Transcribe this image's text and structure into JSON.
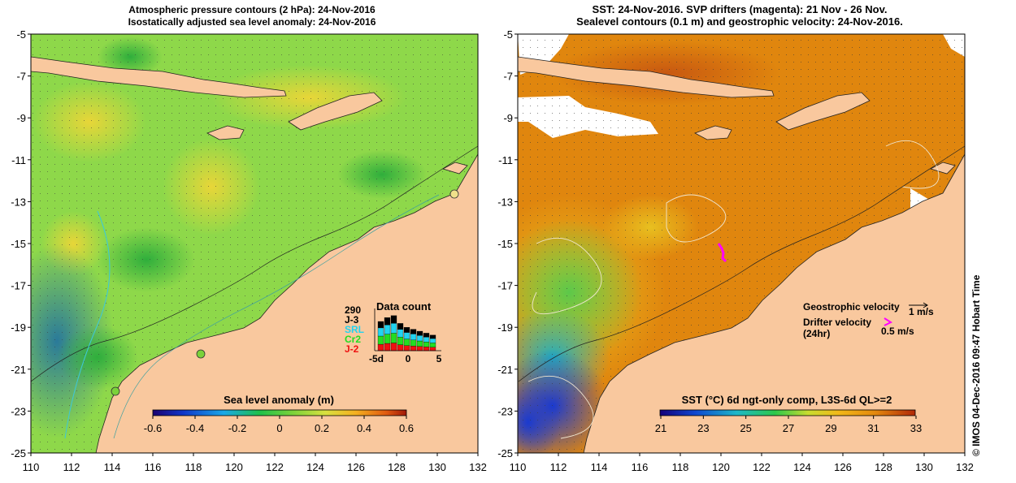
{
  "left_panel": {
    "title_line1": "Atmospheric pressure contours (2 hPa): 24-Nov-2016",
    "title_line2": "Isostatically adjusted sea level anomaly: 24-Nov-2016",
    "y_ticks": [
      "-5",
      "-7",
      "-9",
      "-11",
      "-13",
      "-15",
      "-17",
      "-19",
      "-21",
      "-23",
      "-25"
    ],
    "x_ticks": [
      "110",
      "112",
      "114",
      "116",
      "118",
      "120",
      "122",
      "124",
      "126",
      "128",
      "130",
      "132"
    ],
    "colorbar": {
      "label": "Sea level anomaly (m)",
      "ticks": [
        "-0.6",
        "-0.4",
        "-0.2",
        "0",
        "0.2",
        "0.4",
        "0.6"
      ]
    },
    "data_count": {
      "title": "Data count",
      "max_label": "290",
      "missions": [
        {
          "label": "J-3",
          "color": "#000000"
        },
        {
          "label": "SRL",
          "color": "#22d3f0"
        },
        {
          "label": "Cr2",
          "color": "#22dd22"
        },
        {
          "label": "J-2",
          "color": "#ee1111"
        }
      ],
      "x_ticks": [
        "-5d",
        "0",
        "5"
      ]
    }
  },
  "right_panel": {
    "title_line1": "SST: 24-Nov-2016. SVP drifters (magenta): 21 Nov - 26 Nov.",
    "title_line2": "Sealevel contours (0.1 m) and geostrophic velocity: 24-Nov-2016.",
    "y_ticks": [
      "-5",
      "-7",
      "-9",
      "-11",
      "-13",
      "-15",
      "-17",
      "-19",
      "-21",
      "-23",
      "-25"
    ],
    "x_ticks": [
      "110",
      "112",
      "114",
      "116",
      "118",
      "120",
      "122",
      "124",
      "126",
      "128",
      "130",
      "132"
    ],
    "legend": {
      "geostrophic_label": "Geostrophic velocity",
      "geostrophic_scale": "1 m/s",
      "drifter_label_line1": "Drifter velocity",
      "drifter_label_line2": "(24hr)",
      "drifter_scale": "0.5 m/s"
    },
    "colorbar": {
      "label": "SST (°C) 6d ngt-only comp, L3S-6d QL>=2",
      "ticks": [
        "21",
        "23",
        "25",
        "27",
        "29",
        "31",
        "33"
      ]
    }
  },
  "credit": "©  IMOS 04-Dec-2016 09:47 Hobart Time",
  "colors": {
    "land": "#f9c89e",
    "sla_green": "#8ed84a",
    "sst_orange": "#e0860e",
    "drifter": "#ff00ff"
  }
}
